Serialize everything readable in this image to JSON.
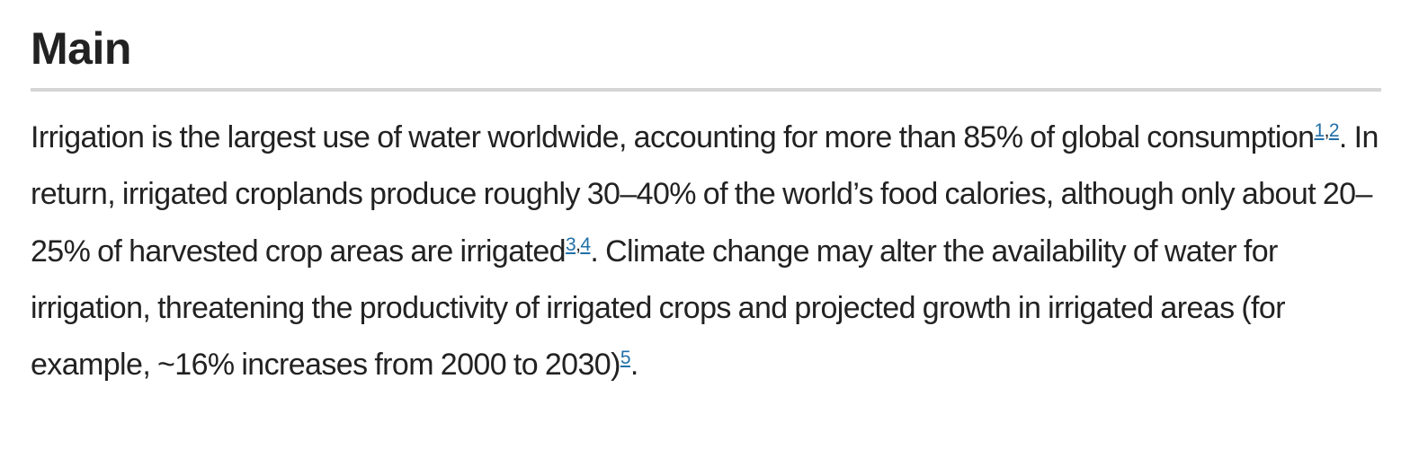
{
  "section": {
    "heading": "Main"
  },
  "paragraph": {
    "seg1": "Irrigation is the largest use of water worldwide, accounting for more than 85% of global consumption",
    "refs_a": [
      "1",
      "2"
    ],
    "seg2": ". In return, irrigated croplands produce roughly 30–40% of the world’s food calories, although only about 20–25% of harvested crop areas are irrigated",
    "refs_b": [
      "3",
      "4"
    ],
    "seg3": ". Climate change may alter the availability of water for irrigation, threatening the productivity of irrigated crops and projected growth in irrigated areas (for example, ~16% increases from 2000 to 2030)",
    "refs_c": [
      "5"
    ],
    "seg4": ".",
    "ref_separator": ","
  },
  "colors": {
    "text": "#222222",
    "link": "#1f6fa8",
    "rule": "#d5d5d5"
  }
}
